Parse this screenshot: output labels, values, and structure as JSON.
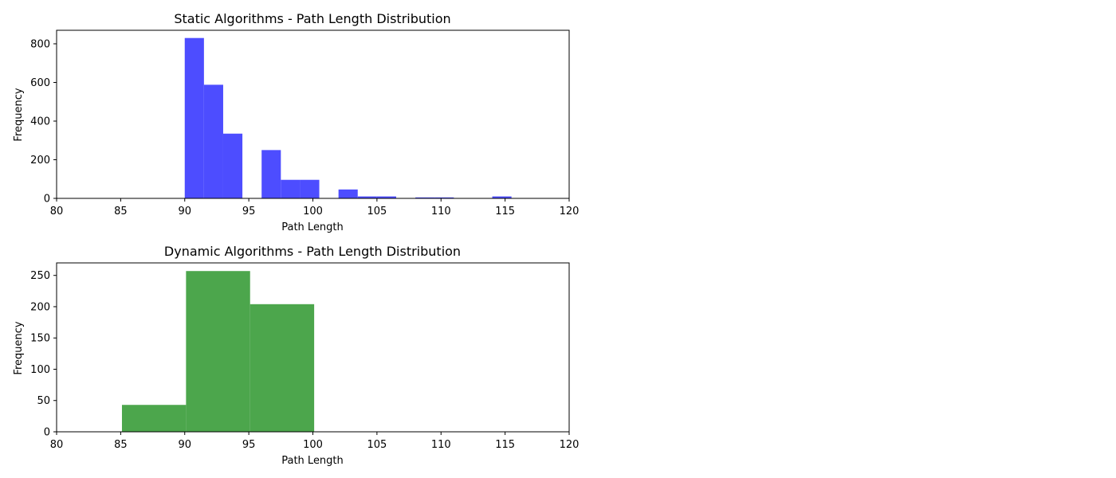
{
  "chart_data": [
    {
      "type": "bar",
      "title": "Static Algorithms - Path Length Distribution",
      "xlabel": "Path Length",
      "ylabel": "Frequency",
      "xlim": [
        80,
        120
      ],
      "ylim": [
        0,
        870
      ],
      "xticks": [
        80,
        85,
        90,
        95,
        100,
        105,
        110,
        115,
        120
      ],
      "yticks": [
        0,
        200,
        400,
        600,
        800
      ],
      "color": "#4d4dff",
      "bins": [
        {
          "start": 90.0,
          "end": 91.5,
          "value": 830
        },
        {
          "start": 91.5,
          "end": 93.0,
          "value": 588
        },
        {
          "start": 93.0,
          "end": 94.5,
          "value": 335
        },
        {
          "start": 94.5,
          "end": 96.0,
          "value": 0
        },
        {
          "start": 96.0,
          "end": 97.5,
          "value": 250
        },
        {
          "start": 97.5,
          "end": 99.0,
          "value": 96
        },
        {
          "start": 99.0,
          "end": 100.5,
          "value": 96
        },
        {
          "start": 100.5,
          "end": 102.0,
          "value": 0
        },
        {
          "start": 102.0,
          "end": 103.5,
          "value": 46
        },
        {
          "start": 103.5,
          "end": 105.0,
          "value": 10
        },
        {
          "start": 105.0,
          "end": 106.5,
          "value": 10
        },
        {
          "start": 106.5,
          "end": 108.0,
          "value": 0
        },
        {
          "start": 108.0,
          "end": 109.5,
          "value": 5
        },
        {
          "start": 109.5,
          "end": 111.0,
          "value": 5
        },
        {
          "start": 111.0,
          "end": 112.5,
          "value": 0
        },
        {
          "start": 112.5,
          "end": 114.0,
          "value": 0
        },
        {
          "start": 114.0,
          "end": 115.5,
          "value": 10
        }
      ]
    },
    {
      "type": "bar",
      "title": "Dynamic Algorithms - Path Length Distribution",
      "xlabel": "Path Length",
      "ylabel": "Frequency",
      "xlim": [
        80,
        120
      ],
      "ylim": [
        0,
        270
      ],
      "xticks": [
        80,
        85,
        90,
        95,
        100,
        105,
        110,
        115,
        120
      ],
      "yticks": [
        0,
        50,
        100,
        150,
        200,
        250
      ],
      "color": "#4ca64c",
      "bins": [
        {
          "start": 85.1,
          "end": 90.1,
          "value": 43
        },
        {
          "start": 90.1,
          "end": 95.1,
          "value": 257
        },
        {
          "start": 95.1,
          "end": 100.1,
          "value": 204
        }
      ]
    }
  ]
}
